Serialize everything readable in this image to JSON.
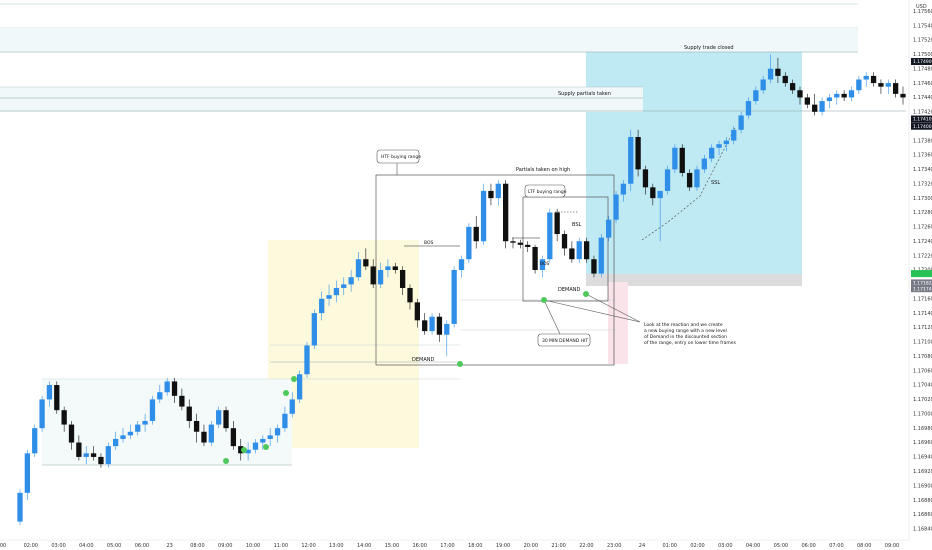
{
  "chart_data": {
    "type": "candlestick",
    "currency": "USD",
    "y_ticks": [
      "1.17560",
      "1.17540",
      "1.17520",
      "1.17500",
      "1.17480",
      "1.17460",
      "1.17440",
      "1.17420",
      "1.17400",
      "1.17380",
      "1.17360",
      "1.17340",
      "1.17320",
      "1.17300",
      "1.17280",
      "1.17260",
      "1.17240",
      "1.17220",
      "1.17200",
      "1.17180",
      "1.17160",
      "1.17140",
      "1.17120",
      "1.17100",
      "1.17080",
      "1.17060",
      "1.17040",
      "1.17020",
      "1.17000",
      "1.16980",
      "1.16960",
      "1.16940",
      "1.16920",
      "1.16900",
      "1.16880",
      "1.16860",
      "1.16840"
    ],
    "ylim": [
      1.1683,
      1.1757
    ],
    "x_ticks": [
      "00",
      "02:00",
      "03:00",
      "04:00",
      "05:00",
      "06:00",
      "23",
      "08:00",
      "09:00",
      "10:00",
      "11:00",
      "12:00",
      "13:00",
      "14:00",
      "15:00",
      "16:00",
      "17:00",
      "18:00",
      "19:00",
      "20:00",
      "21:00",
      "22:00",
      "23:00",
      "24",
      "01:00",
      "02:00",
      "03:00",
      "04:00",
      "05:00",
      "06:00",
      "07:00",
      "08:00",
      "09:00"
    ],
    "price_tags": [
      {
        "label": "1.17490",
        "price": 1.1749,
        "color": "#131722"
      },
      {
        "label": "1.17410",
        "price": 1.1741,
        "color": "#131722"
      },
      {
        "label": "1.17400",
        "price": 1.174,
        "color": "#131722"
      },
      {
        "label": "",
        "price": 1.17195,
        "color": "#26c253"
      },
      {
        "label": "1.17182",
        "price": 1.17182,
        "color": "#787b86"
      },
      {
        "label": "1.17174",
        "price": 1.17174,
        "color": "#787b86"
      }
    ],
    "annotations": [
      {
        "id": "supply-trade-closed",
        "text": "Supply trade closed"
      },
      {
        "id": "supply-partials-taken",
        "text": "Supply partials taken"
      },
      {
        "id": "htf-buying-range",
        "text": "HTF buying range"
      },
      {
        "id": "partials-taken-high",
        "text": "Partials taken on high"
      },
      {
        "id": "ltf-buying-range",
        "text": "LTF buying range"
      },
      {
        "id": "bos-1",
        "text": "BOS"
      },
      {
        "id": "bos-2",
        "text": "BOS"
      },
      {
        "id": "bsl",
        "text": "BSL"
      },
      {
        "id": "ssl",
        "text": "SSL"
      },
      {
        "id": "demand-1",
        "text": "DEMAND"
      },
      {
        "id": "demand-2",
        "text": "DEMAND"
      },
      {
        "id": "demand-30min",
        "text": "30 MIN DEMAND HIT"
      },
      {
        "id": "reaction-note-1",
        "text": "Look at the reaction and we create"
      },
      {
        "id": "reaction-note-2",
        "text": "a new buying range with a new level"
      },
      {
        "id": "reaction-note-3",
        "text": "of Demand in the discounted section"
      },
      {
        "id": "reaction-note-4",
        "text": "of the range, entry on lower time frames"
      }
    ],
    "colors": {
      "up": "#2f8fe8",
      "down": "#101010",
      "supply_zone": "#bfe9f3",
      "demand_zone": "#fdf9dc",
      "hit_marker": "#4fc95c",
      "pink_zone": "#fbe3ea"
    },
    "candles": [
      {
        "o": 1.1685,
        "h": 1.16895,
        "l": 1.16845,
        "c": 1.1689
      },
      {
        "o": 1.1689,
        "h": 1.1695,
        "l": 1.1688,
        "c": 1.16945
      },
      {
        "o": 1.16945,
        "h": 1.16985,
        "l": 1.1694,
        "c": 1.1698
      },
      {
        "o": 1.1698,
        "h": 1.17025,
        "l": 1.16975,
        "c": 1.1702
      },
      {
        "o": 1.1702,
        "h": 1.17045,
        "l": 1.1701,
        "c": 1.1704
      },
      {
        "o": 1.1704,
        "h": 1.17045,
        "l": 1.17,
        "c": 1.17005
      },
      {
        "o": 1.17005,
        "h": 1.1701,
        "l": 1.16975,
        "c": 1.16985
      },
      {
        "o": 1.16985,
        "h": 1.1699,
        "l": 1.1695,
        "c": 1.1696
      },
      {
        "o": 1.1696,
        "h": 1.1697,
        "l": 1.16935,
        "c": 1.1694
      },
      {
        "o": 1.1694,
        "h": 1.16955,
        "l": 1.1693,
        "c": 1.16945
      },
      {
        "o": 1.16945,
        "h": 1.16955,
        "l": 1.16935,
        "c": 1.1694
      },
      {
        "o": 1.1694,
        "h": 1.16945,
        "l": 1.16925,
        "c": 1.1693
      },
      {
        "o": 1.1693,
        "h": 1.1696,
        "l": 1.16925,
        "c": 1.16955
      },
      {
        "o": 1.16955,
        "h": 1.16975,
        "l": 1.1695,
        "c": 1.16965
      },
      {
        "o": 1.16965,
        "h": 1.1698,
        "l": 1.1696,
        "c": 1.1697
      },
      {
        "o": 1.1697,
        "h": 1.16985,
        "l": 1.16965,
        "c": 1.16975
      },
      {
        "o": 1.16975,
        "h": 1.1699,
        "l": 1.1697,
        "c": 1.16985
      },
      {
        "o": 1.16985,
        "h": 1.17,
        "l": 1.16975,
        "c": 1.1699
      },
      {
        "o": 1.1699,
        "h": 1.17025,
        "l": 1.16985,
        "c": 1.1702
      },
      {
        "o": 1.1702,
        "h": 1.1704,
        "l": 1.17015,
        "c": 1.1703
      },
      {
        "o": 1.1703,
        "h": 1.1705,
        "l": 1.17025,
        "c": 1.17045
      },
      {
        "o": 1.17045,
        "h": 1.1705,
        "l": 1.17015,
        "c": 1.17025
      },
      {
        "o": 1.17025,
        "h": 1.17035,
        "l": 1.17005,
        "c": 1.1701
      },
      {
        "o": 1.1701,
        "h": 1.1702,
        "l": 1.1698,
        "c": 1.1699
      },
      {
        "o": 1.1699,
        "h": 1.17,
        "l": 1.1696,
        "c": 1.16975
      },
      {
        "o": 1.16975,
        "h": 1.16985,
        "l": 1.16955,
        "c": 1.1696
      },
      {
        "o": 1.1696,
        "h": 1.1699,
        "l": 1.16955,
        "c": 1.16985
      },
      {
        "o": 1.16985,
        "h": 1.1701,
        "l": 1.1698,
        "c": 1.17005
      },
      {
        "o": 1.17005,
        "h": 1.1701,
        "l": 1.16975,
        "c": 1.1698
      },
      {
        "o": 1.1698,
        "h": 1.1699,
        "l": 1.1695,
        "c": 1.16955
      },
      {
        "o": 1.16955,
        "h": 1.16965,
        "l": 1.16935,
        "c": 1.16945
      },
      {
        "o": 1.16945,
        "h": 1.1696,
        "l": 1.16935,
        "c": 1.1695
      },
      {
        "o": 1.1695,
        "h": 1.16965,
        "l": 1.16945,
        "c": 1.1696
      },
      {
        "o": 1.1696,
        "h": 1.1697,
        "l": 1.1695,
        "c": 1.16965
      },
      {
        "o": 1.16965,
        "h": 1.1698,
        "l": 1.16955,
        "c": 1.1697
      },
      {
        "o": 1.1697,
        "h": 1.16985,
        "l": 1.1696,
        "c": 1.1698
      },
      {
        "o": 1.1698,
        "h": 1.1701,
        "l": 1.16975,
        "c": 1.17
      },
      {
        "o": 1.17,
        "h": 1.1703,
        "l": 1.16995,
        "c": 1.1702
      },
      {
        "o": 1.1702,
        "h": 1.1706,
        "l": 1.17015,
        "c": 1.17055
      },
      {
        "o": 1.17055,
        "h": 1.171,
        "l": 1.1705,
        "c": 1.17095
      },
      {
        "o": 1.17095,
        "h": 1.17145,
        "l": 1.1709,
        "c": 1.1714
      },
      {
        "o": 1.1714,
        "h": 1.1717,
        "l": 1.1713,
        "c": 1.1716
      },
      {
        "o": 1.1716,
        "h": 1.1718,
        "l": 1.1715,
        "c": 1.17165
      },
      {
        "o": 1.17165,
        "h": 1.17185,
        "l": 1.17155,
        "c": 1.17175
      },
      {
        "o": 1.17175,
        "h": 1.1719,
        "l": 1.17165,
        "c": 1.1718
      },
      {
        "o": 1.1718,
        "h": 1.172,
        "l": 1.1717,
        "c": 1.1719
      },
      {
        "o": 1.1719,
        "h": 1.17225,
        "l": 1.17185,
        "c": 1.17215
      },
      {
        "o": 1.17215,
        "h": 1.1723,
        "l": 1.172,
        "c": 1.17205
      },
      {
        "o": 1.17205,
        "h": 1.17215,
        "l": 1.17175,
        "c": 1.1718
      },
      {
        "o": 1.1718,
        "h": 1.1721,
        "l": 1.17175,
        "c": 1.172
      },
      {
        "o": 1.172,
        "h": 1.17215,
        "l": 1.1719,
        "c": 1.17205
      },
      {
        "o": 1.17205,
        "h": 1.1721,
        "l": 1.17195,
        "c": 1.172
      },
      {
        "o": 1.172,
        "h": 1.17205,
        "l": 1.17165,
        "c": 1.17175
      },
      {
        "o": 1.17175,
        "h": 1.1718,
        "l": 1.17145,
        "c": 1.17155
      },
      {
        "o": 1.17155,
        "h": 1.1716,
        "l": 1.1712,
        "c": 1.1713
      },
      {
        "o": 1.1713,
        "h": 1.1714,
        "l": 1.1711,
        "c": 1.17115
      },
      {
        "o": 1.17115,
        "h": 1.1714,
        "l": 1.1711,
        "c": 1.17135
      },
      {
        "o": 1.17135,
        "h": 1.1714,
        "l": 1.171,
        "c": 1.1711
      },
      {
        "o": 1.1711,
        "h": 1.1713,
        "l": 1.1708,
        "c": 1.17125
      },
      {
        "o": 1.17125,
        "h": 1.17205,
        "l": 1.1712,
        "c": 1.172
      },
      {
        "o": 1.172,
        "h": 1.1722,
        "l": 1.1719,
        "c": 1.17215
      },
      {
        "o": 1.17215,
        "h": 1.17265,
        "l": 1.1721,
        "c": 1.1726
      },
      {
        "o": 1.1726,
        "h": 1.17275,
        "l": 1.1723,
        "c": 1.1724
      },
      {
        "o": 1.1724,
        "h": 1.1732,
        "l": 1.17235,
        "c": 1.1731
      },
      {
        "o": 1.1731,
        "h": 1.1732,
        "l": 1.1729,
        "c": 1.173
      },
      {
        "o": 1.173,
        "h": 1.17325,
        "l": 1.1729,
        "c": 1.1732
      },
      {
        "o": 1.1732,
        "h": 1.17325,
        "l": 1.1723,
        "c": 1.1724
      },
      {
        "o": 1.1724,
        "h": 1.17245,
        "l": 1.1723,
        "c": 1.17238
      },
      {
        "o": 1.17238,
        "h": 1.17242,
        "l": 1.1723,
        "c": 1.17235
      },
      {
        "o": 1.17235,
        "h": 1.1724,
        "l": 1.17225,
        "c": 1.17232
      },
      {
        "o": 1.17232,
        "h": 1.17235,
        "l": 1.17195,
        "c": 1.172
      },
      {
        "o": 1.172,
        "h": 1.1722,
        "l": 1.1719,
        "c": 1.17215
      },
      {
        "o": 1.17215,
        "h": 1.17285,
        "l": 1.1721,
        "c": 1.1728
      },
      {
        "o": 1.1728,
        "h": 1.17285,
        "l": 1.1724,
        "c": 1.1725
      },
      {
        "o": 1.1725,
        "h": 1.17255,
        "l": 1.1722,
        "c": 1.1723
      },
      {
        "o": 1.1723,
        "h": 1.1724,
        "l": 1.1721,
        "c": 1.17215
      },
      {
        "o": 1.17215,
        "h": 1.17245,
        "l": 1.1721,
        "c": 1.1724
      },
      {
        "o": 1.1724,
        "h": 1.17245,
        "l": 1.1721,
        "c": 1.17215
      },
      {
        "o": 1.17215,
        "h": 1.1722,
        "l": 1.1719,
        "c": 1.17195
      },
      {
        "o": 1.17195,
        "h": 1.1725,
        "l": 1.1719,
        "c": 1.17245
      },
      {
        "o": 1.17245,
        "h": 1.17275,
        "l": 1.1724,
        "c": 1.1727
      },
      {
        "o": 1.1727,
        "h": 1.1731,
        "l": 1.17265,
        "c": 1.17305
      },
      {
        "o": 1.17305,
        "h": 1.17325,
        "l": 1.17295,
        "c": 1.1732
      },
      {
        "o": 1.1732,
        "h": 1.17395,
        "l": 1.1731,
        "c": 1.17385
      },
      {
        "o": 1.17385,
        "h": 1.17395,
        "l": 1.1733,
        "c": 1.1734
      },
      {
        "o": 1.1734,
        "h": 1.17345,
        "l": 1.17305,
        "c": 1.17315
      },
      {
        "o": 1.17315,
        "h": 1.1732,
        "l": 1.1729,
        "c": 1.173
      },
      {
        "o": 1.173,
        "h": 1.1731,
        "l": 1.1724,
        "c": 1.1731
      },
      {
        "o": 1.1731,
        "h": 1.17345,
        "l": 1.17305,
        "c": 1.1734
      },
      {
        "o": 1.1734,
        "h": 1.17375,
        "l": 1.17335,
        "c": 1.1737
      },
      {
        "o": 1.1737,
        "h": 1.17375,
        "l": 1.1733,
        "c": 1.17335
      },
      {
        "o": 1.17335,
        "h": 1.1734,
        "l": 1.1731,
        "c": 1.17315
      },
      {
        "o": 1.17315,
        "h": 1.17345,
        "l": 1.1731,
        "c": 1.1734
      },
      {
        "o": 1.1734,
        "h": 1.1736,
        "l": 1.17335,
        "c": 1.17355
      },
      {
        "o": 1.17355,
        "h": 1.17375,
        "l": 1.1735,
        "c": 1.1737
      },
      {
        "o": 1.1737,
        "h": 1.1738,
        "l": 1.1736,
        "c": 1.17375
      },
      {
        "o": 1.17375,
        "h": 1.17385,
        "l": 1.17365,
        "c": 1.1738
      },
      {
        "o": 1.1738,
        "h": 1.174,
        "l": 1.17375,
        "c": 1.17395
      },
      {
        "o": 1.17395,
        "h": 1.1742,
        "l": 1.1739,
        "c": 1.17415
      },
      {
        "o": 1.17415,
        "h": 1.1744,
        "l": 1.1741,
        "c": 1.17435
      },
      {
        "o": 1.17435,
        "h": 1.17455,
        "l": 1.1743,
        "c": 1.1745
      },
      {
        "o": 1.1745,
        "h": 1.1747,
        "l": 1.17445,
        "c": 1.17465
      },
      {
        "o": 1.17465,
        "h": 1.175,
        "l": 1.1746,
        "c": 1.1748
      },
      {
        "o": 1.1748,
        "h": 1.17495,
        "l": 1.1746,
        "c": 1.1747
      },
      {
        "o": 1.1747,
        "h": 1.17475,
        "l": 1.17455,
        "c": 1.1746
      },
      {
        "o": 1.1746,
        "h": 1.17465,
        "l": 1.17445,
        "c": 1.1745
      },
      {
        "o": 1.1745,
        "h": 1.17455,
        "l": 1.1743,
        "c": 1.1744
      },
      {
        "o": 1.1744,
        "h": 1.17445,
        "l": 1.17425,
        "c": 1.1743
      },
      {
        "o": 1.1743,
        "h": 1.17445,
        "l": 1.17415,
        "c": 1.1742
      },
      {
        "o": 1.1742,
        "h": 1.1744,
        "l": 1.17415,
        "c": 1.17435
      },
      {
        "o": 1.17435,
        "h": 1.17445,
        "l": 1.17425,
        "c": 1.1744
      },
      {
        "o": 1.1744,
        "h": 1.1745,
        "l": 1.1743,
        "c": 1.17445
      },
      {
        "o": 1.17445,
        "h": 1.1745,
        "l": 1.17435,
        "c": 1.1744
      },
      {
        "o": 1.1744,
        "h": 1.17455,
        "l": 1.17435,
        "c": 1.1745
      },
      {
        "o": 1.1745,
        "h": 1.1747,
        "l": 1.17445,
        "c": 1.17465
      },
      {
        "o": 1.17465,
        "h": 1.17475,
        "l": 1.17455,
        "c": 1.1747
      },
      {
        "o": 1.1747,
        "h": 1.17475,
        "l": 1.17455,
        "c": 1.1746
      },
      {
        "o": 1.1746,
        "h": 1.17465,
        "l": 1.17445,
        "c": 1.17455
      },
      {
        "o": 1.17455,
        "h": 1.17465,
        "l": 1.17445,
        "c": 1.1746
      },
      {
        "o": 1.1746,
        "h": 1.17465,
        "l": 1.1744,
        "c": 1.17445
      },
      {
        "o": 1.17445,
        "h": 1.17455,
        "l": 1.1743,
        "c": 1.1744
      }
    ]
  }
}
